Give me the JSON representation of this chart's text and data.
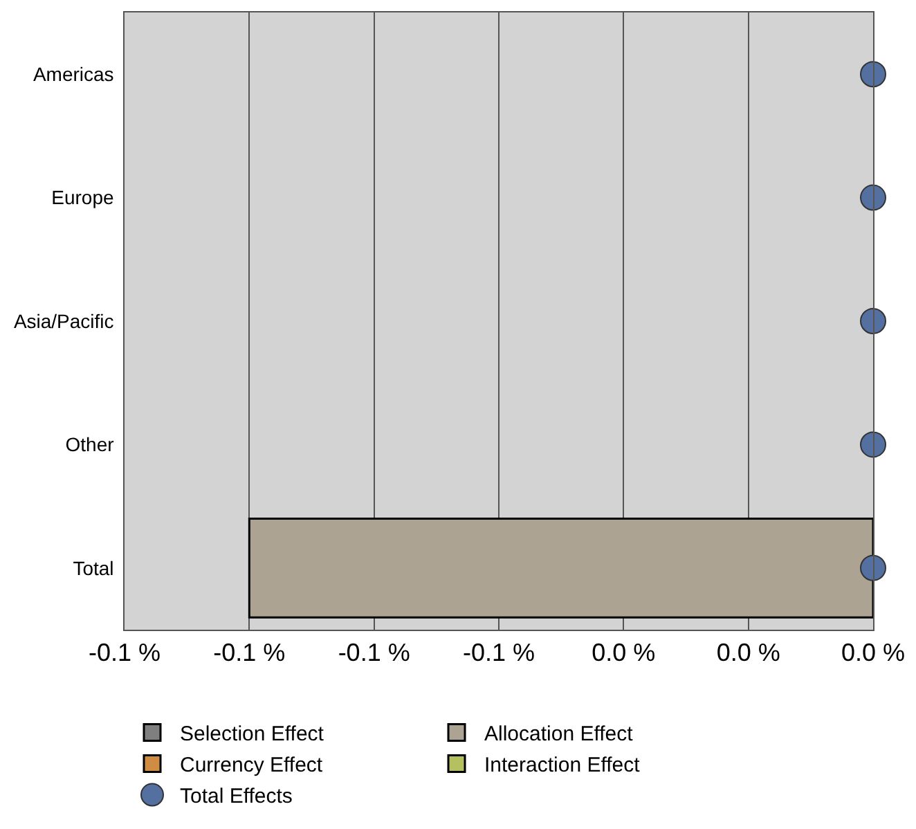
{
  "chart_data": {
    "type": "bar",
    "orientation": "horizontal",
    "stacked": true,
    "categories": [
      "Americas",
      "Europe",
      "Asia/Pacific",
      "Other",
      "Total"
    ],
    "series": [
      {
        "name": "Selection Effect",
        "color": "#7f7f7f",
        "values": [
          null,
          null,
          null,
          null,
          null
        ]
      },
      {
        "name": "Allocation Effect",
        "color": "#ada392",
        "values": [
          null,
          null,
          null,
          null,
          -0.1
        ]
      },
      {
        "name": "Currency Effect",
        "color": "#d08c42",
        "values": [
          null,
          null,
          null,
          null,
          null
        ]
      },
      {
        "name": "Interaction Effect",
        "color": "#b5c060",
        "values": [
          null,
          null,
          null,
          null,
          null
        ]
      },
      {
        "name": "Total Effects",
        "type": "scatter",
        "color": "#5470a0",
        "marker": "circle",
        "values": [
          0,
          0,
          0,
          0,
          0
        ]
      }
    ],
    "xlim": [
      -0.12,
      0
    ],
    "xticks": [
      {
        "value": -0.12,
        "label": "-0.1 %"
      },
      {
        "value": -0.1,
        "label": "-0.1 %"
      },
      {
        "value": -0.08,
        "label": "-0.1 %"
      },
      {
        "value": -0.06,
        "label": "-0.1 %"
      },
      {
        "value": -0.04,
        "label": "0.0 %"
      },
      {
        "value": -0.02,
        "label": "0.0 %"
      },
      {
        "value": 0,
        "label": "0.0 %"
      }
    ],
    "grid": "x",
    "legend": "bottom"
  }
}
